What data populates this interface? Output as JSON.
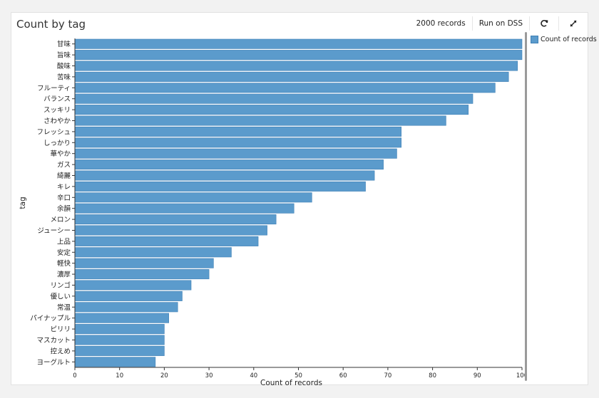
{
  "panel": {
    "title": "Count by tag",
    "records": "2000 records",
    "run": "Run on DSS",
    "refresh_icon": "refresh-icon",
    "expand_icon": "expand-icon"
  },
  "chart_data": {
    "type": "bar",
    "orientation": "horizontal",
    "categories": [
      "甘味",
      "旨味",
      "酸味",
      "苦味",
      "フルーティ",
      "バランス",
      "スッキリ",
      "さわやか",
      "フレッシュ",
      "しっかり",
      "華やか",
      "ガス",
      "綺麗",
      "キレ",
      "辛口",
      "余韻",
      "メロン",
      "ジューシー",
      "上品",
      "安定",
      "軽快",
      "濃厚",
      "リンゴ",
      "優しい",
      "常温",
      "パイナップル",
      "ピリリ",
      "マスカット",
      "控えめ",
      "ヨーグルト"
    ],
    "series": [
      {
        "name": "Count of records",
        "values": [
          100,
          100,
          99,
          97,
          94,
          89,
          88,
          83,
          73,
          73,
          72,
          69,
          67,
          65,
          53,
          49,
          45,
          43,
          41,
          35,
          31,
          30,
          26,
          24,
          23,
          21,
          20,
          20,
          20,
          18
        ],
        "color": "#5b9bcc"
      }
    ],
    "xlabel": "Count of records",
    "ylabel": "tag",
    "xlim": [
      0,
      100
    ],
    "xticks": [
      0,
      10,
      20,
      30,
      40,
      50,
      60,
      70,
      80,
      90,
      100
    ],
    "grid": false,
    "legend": "top-right"
  }
}
